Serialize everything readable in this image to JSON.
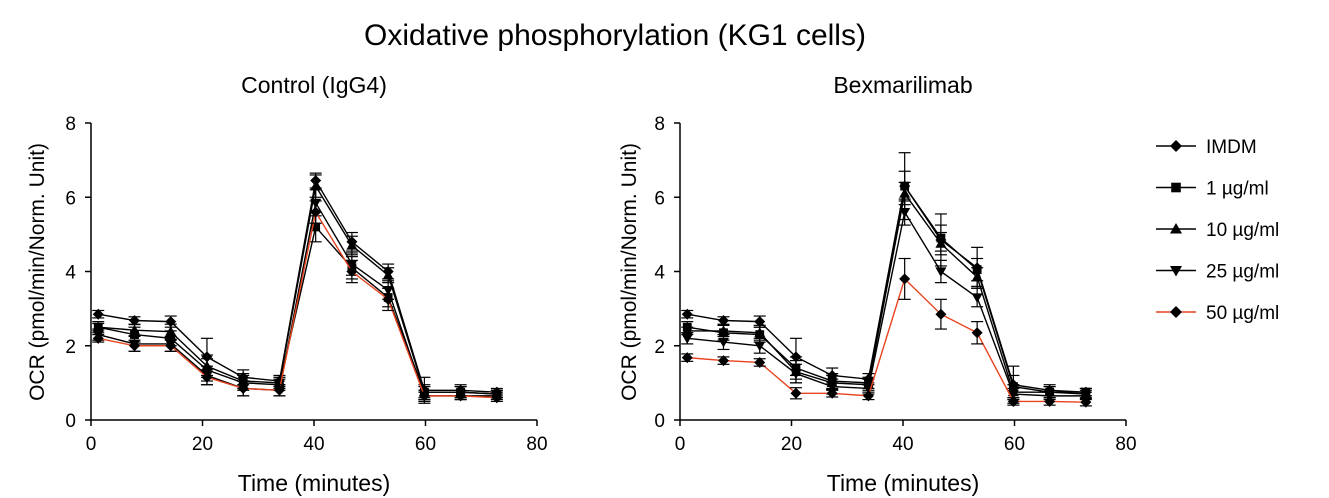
{
  "figure_title": "Oxidative phosphorylation (KG1 cells)",
  "legend": [
    {
      "label": "IMDM",
      "marker": "diamond",
      "color": "#000000"
    },
    {
      "label": "1 µg/ml",
      "marker": "square",
      "color": "#000000"
    },
    {
      "label": "10 µg/ml",
      "marker": "triangle-up",
      "color": "#000000"
    },
    {
      "label": "25 µg/ml",
      "marker": "triangle-down",
      "color": "#000000"
    },
    {
      "label": "50 µg/ml",
      "marker": "diamond",
      "color": "#e8431f"
    }
  ],
  "chart_data": [
    {
      "type": "line",
      "title": "Control (IgG4)",
      "xlabel": "Time (minutes)",
      "ylabel": "OCR (pmol/min/Norm. Unit)",
      "xlim": [
        0,
        80
      ],
      "ylim": [
        0,
        8
      ],
      "xticks": [
        0,
        20,
        40,
        60,
        80
      ],
      "yticks": [
        0,
        2,
        4,
        6,
        8
      ],
      "grid": false,
      "x": [
        1.3,
        7.8,
        14.3,
        20.8,
        27.3,
        33.8,
        40.3,
        46.8,
        53.3,
        59.8,
        66.3,
        72.8
      ],
      "series": [
        {
          "name": "IMDM",
          "values": [
            2.85,
            2.68,
            2.65,
            1.7,
            1.15,
            1.05,
            6.45,
            4.8,
            4.0,
            0.8,
            0.8,
            0.75
          ],
          "error": [
            0.1,
            0.1,
            0.15,
            0.5,
            0.2,
            0.15,
            0.2,
            0.25,
            0.2,
            0.35,
            0.15,
            0.1
          ]
        },
        {
          "name": "1 µg/ml",
          "values": [
            2.5,
            2.3,
            2.2,
            1.35,
            1.0,
            0.95,
            5.2,
            4.1,
            3.3,
            0.75,
            0.75,
            0.7
          ],
          "error": [
            0.15,
            0.2,
            0.2,
            0.3,
            0.2,
            0.15,
            0.4,
            0.3,
            0.25,
            0.15,
            0.15,
            0.1
          ]
        },
        {
          "name": "10 µg/ml",
          "values": [
            2.5,
            2.42,
            2.38,
            1.45,
            1.05,
            1.0,
            6.3,
            4.7,
            3.9,
            0.75,
            0.75,
            0.7
          ],
          "error": [
            0.1,
            0.15,
            0.2,
            0.3,
            0.2,
            0.15,
            0.3,
            0.25,
            0.2,
            0.2,
            0.15,
            0.1
          ]
        },
        {
          "name": "25 µg/ml",
          "values": [
            2.3,
            2.05,
            2.05,
            1.2,
            0.85,
            0.8,
            5.85,
            4.2,
            3.5,
            0.65,
            0.65,
            0.65
          ],
          "error": [
            0.15,
            0.2,
            0.2,
            0.25,
            0.2,
            0.15,
            0.35,
            0.3,
            0.25,
            0.15,
            0.1,
            0.1
          ]
        },
        {
          "name": "50 µg/ml",
          "values": [
            2.2,
            2.0,
            2.0,
            1.15,
            0.85,
            0.8,
            5.6,
            4.0,
            3.25,
            0.65,
            0.65,
            0.6
          ],
          "error": [
            0.1,
            0.15,
            0.15,
            0.2,
            0.2,
            0.15,
            0.3,
            0.3,
            0.3,
            0.1,
            0.1,
            0.1
          ]
        }
      ]
    },
    {
      "type": "line",
      "title": "Bexmarilimab",
      "xlabel": "Time (minutes)",
      "ylabel": "OCR (pmol/min/Norm. Unit)",
      "xlim": [
        0,
        80
      ],
      "ylim": [
        0,
        8
      ],
      "xticks": [
        0,
        20,
        40,
        60,
        80
      ],
      "yticks": [
        0,
        2,
        4,
        6,
        8
      ],
      "grid": false,
      "x": [
        1.3,
        7.8,
        14.3,
        20.8,
        27.3,
        33.8,
        40.3,
        46.8,
        53.3,
        59.8,
        66.3,
        72.8
      ],
      "series": [
        {
          "name": "IMDM",
          "values": [
            2.85,
            2.68,
            2.65,
            1.7,
            1.2,
            1.1,
            6.3,
            4.85,
            4.1,
            0.95,
            0.8,
            0.75
          ],
          "error": [
            0.1,
            0.1,
            0.15,
            0.5,
            0.2,
            0.15,
            0.9,
            0.7,
            0.55,
            0.5,
            0.15,
            0.1
          ]
        },
        {
          "name": "1 µg/ml",
          "values": [
            2.5,
            2.35,
            2.3,
            1.4,
            1.05,
            1.0,
            6.3,
            4.9,
            4.05,
            0.9,
            0.75,
            0.75
          ],
          "error": [
            0.15,
            0.2,
            0.2,
            0.3,
            0.2,
            0.15,
            0.4,
            0.35,
            0.3,
            0.3,
            0.15,
            0.1
          ]
        },
        {
          "name": "10 µg/ml",
          "values": [
            2.4,
            2.4,
            2.35,
            1.3,
            1.0,
            0.95,
            6.1,
            4.75,
            3.85,
            0.75,
            0.75,
            0.7
          ],
          "error": [
            0.1,
            0.15,
            0.2,
            0.3,
            0.2,
            0.15,
            0.3,
            0.3,
            0.25,
            0.2,
            0.15,
            0.1
          ]
        },
        {
          "name": "25 µg/ml",
          "values": [
            2.2,
            2.1,
            2.0,
            1.25,
            0.9,
            0.85,
            5.6,
            4.0,
            3.3,
            0.7,
            0.65,
            0.65
          ],
          "error": [
            0.15,
            0.2,
            0.2,
            0.25,
            0.2,
            0.15,
            0.35,
            0.3,
            0.25,
            0.15,
            0.1,
            0.1
          ]
        },
        {
          "name": "50 µg/ml",
          "values": [
            1.68,
            1.6,
            1.55,
            0.72,
            0.72,
            0.65,
            3.8,
            2.85,
            2.35,
            0.5,
            0.5,
            0.48
          ],
          "error": [
            0.1,
            0.1,
            0.1,
            0.15,
            0.1,
            0.1,
            0.55,
            0.4,
            0.3,
            0.1,
            0.1,
            0.1
          ]
        }
      ]
    }
  ]
}
